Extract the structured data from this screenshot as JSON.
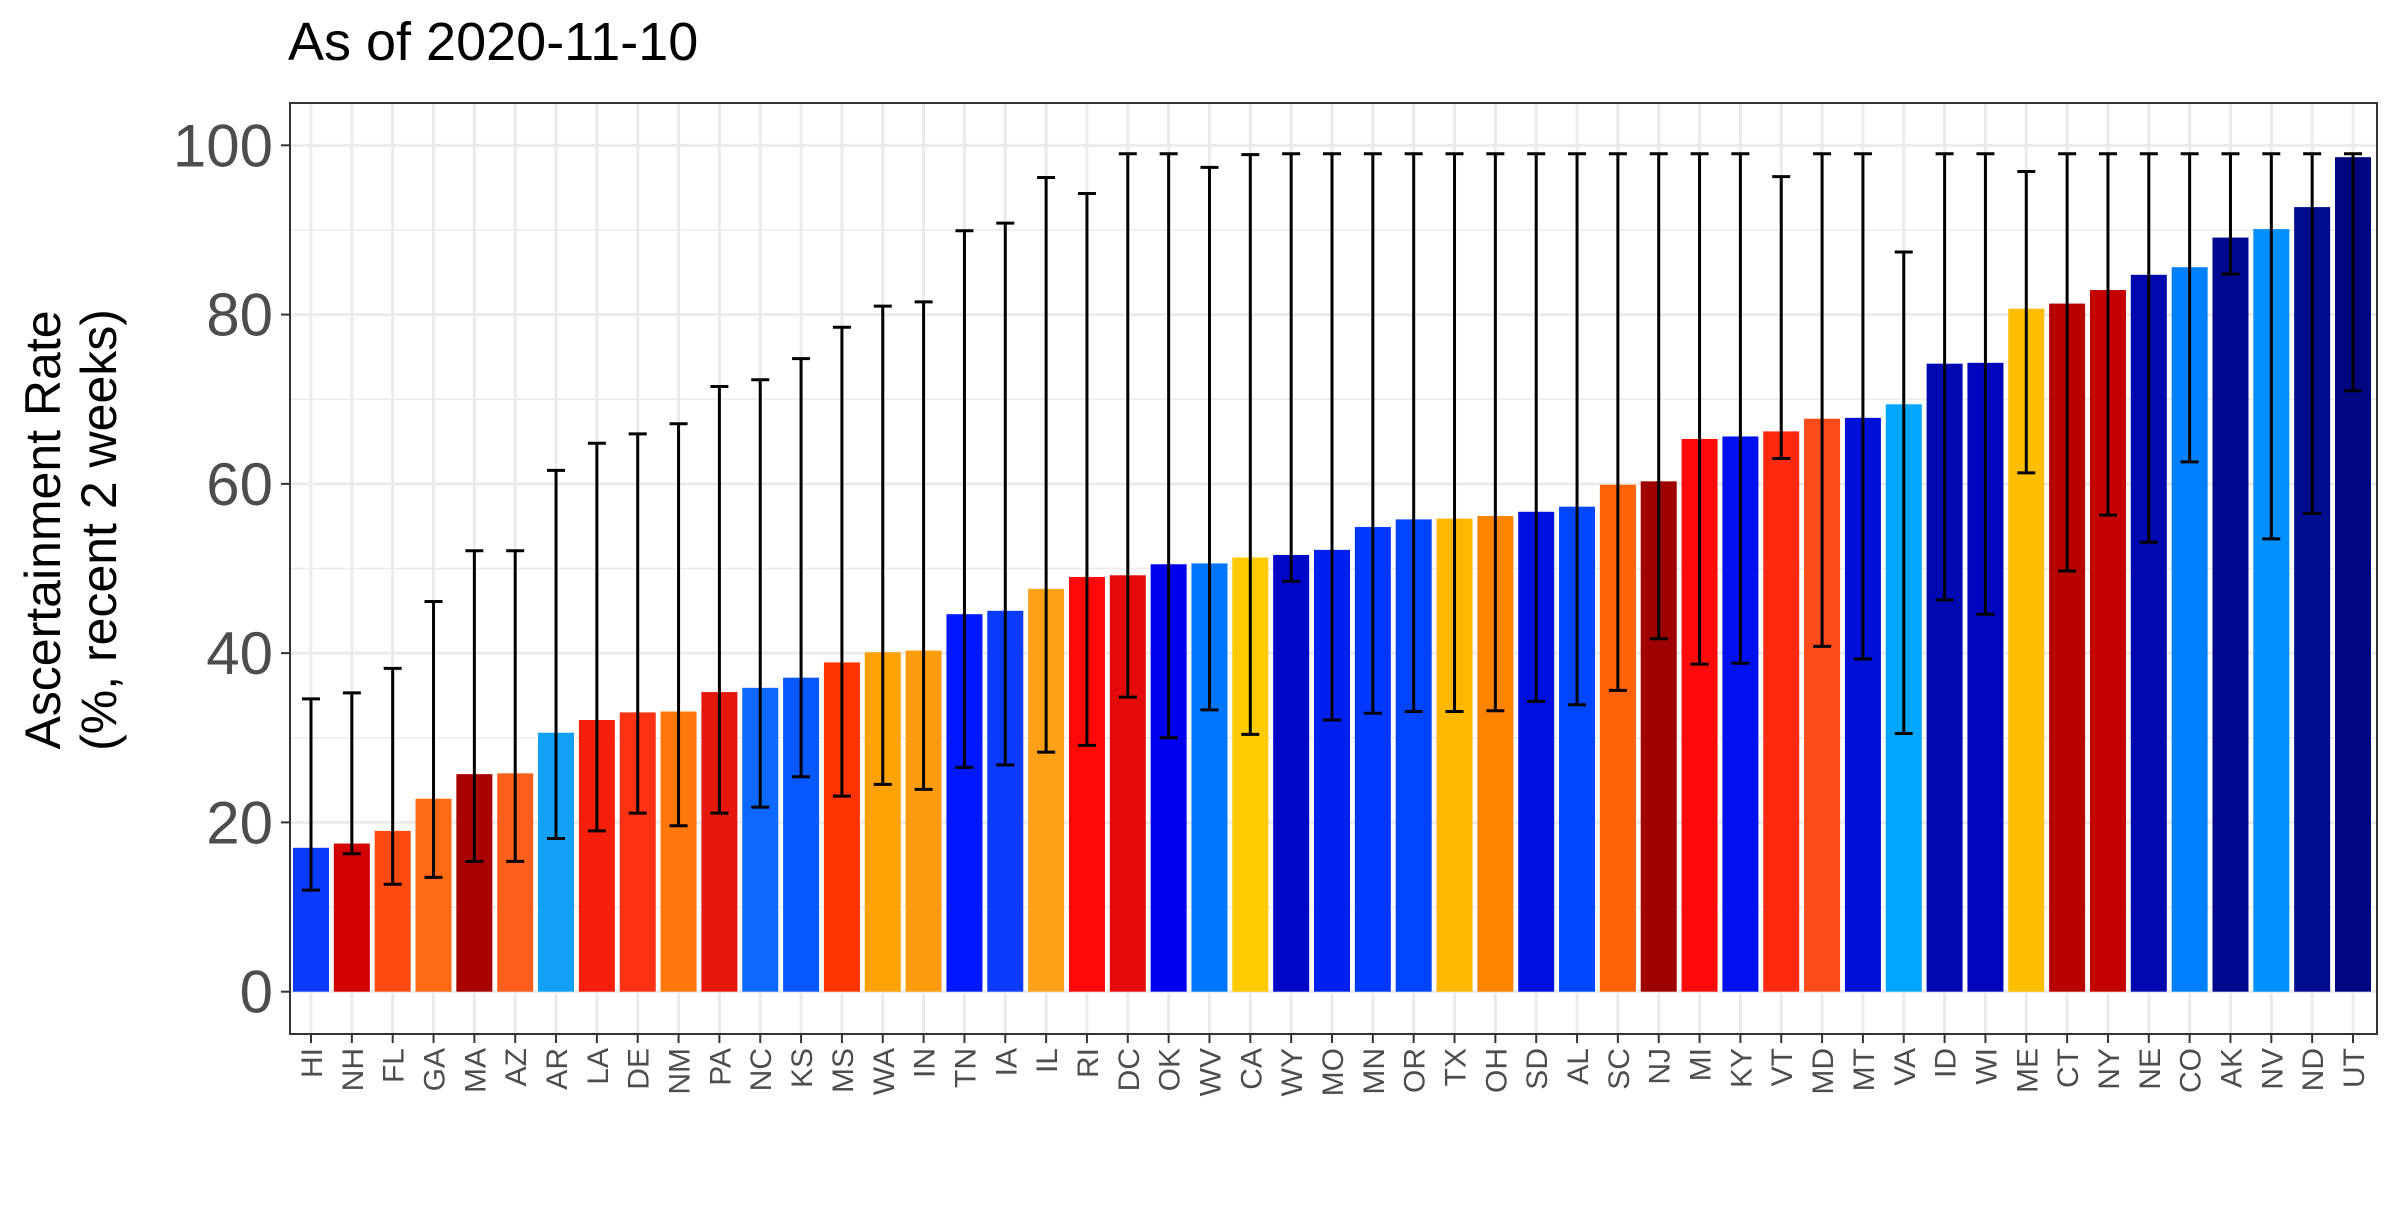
{
  "chart_data": {
    "type": "bar",
    "title": "As of 2020-11-10",
    "ylabel_line1": "Ascertainment Rate",
    "ylabel_line2": "(%, recent 2 weeks)",
    "xlabel": "",
    "ylim": [
      -5,
      105
    ],
    "yticks": [
      0,
      20,
      40,
      60,
      80,
      100
    ],
    "grid": true,
    "legend": "none",
    "categories": [
      "HI",
      "NH",
      "FL",
      "GA",
      "MA",
      "AZ",
      "AR",
      "LA",
      "DE",
      "NM",
      "PA",
      "NC",
      "KS",
      "MS",
      "WA",
      "IN",
      "TN",
      "IA",
      "IL",
      "RI",
      "DC",
      "OK",
      "WV",
      "CA",
      "WY",
      "MO",
      "MN",
      "OR",
      "TX",
      "OH",
      "SD",
      "AL",
      "SC",
      "NJ",
      "MI",
      "KY",
      "VT",
      "MD",
      "MT",
      "VA",
      "ID",
      "WI",
      "ME",
      "CT",
      "NY",
      "NE",
      "CO",
      "AK",
      "NV",
      "ND",
      "UT"
    ],
    "values": [
      17.0,
      17.5,
      19.0,
      22.8,
      25.7,
      25.8,
      30.6,
      32.1,
      33.0,
      33.1,
      35.4,
      35.9,
      37.1,
      38.9,
      40.1,
      40.3,
      44.6,
      45.0,
      47.6,
      49.0,
      49.2,
      50.5,
      50.6,
      51.3,
      51.6,
      52.2,
      54.9,
      55.8,
      55.9,
      56.2,
      56.7,
      57.3,
      59.9,
      60.3,
      65.3,
      65.6,
      66.2,
      67.7,
      67.8,
      69.4,
      74.2,
      74.3,
      80.7,
      81.3,
      82.9,
      84.7,
      85.6,
      89.1,
      90.1,
      92.7,
      98.6
    ],
    "ci_lower": [
      12.0,
      16.3,
      12.7,
      13.5,
      15.4,
      15.4,
      18.1,
      19.0,
      21.1,
      19.6,
      21.1,
      21.8,
      25.4,
      23.1,
      24.5,
      23.9,
      26.5,
      26.8,
      28.3,
      29.1,
      34.8,
      30.0,
      33.3,
      30.4,
      48.5,
      32.1,
      32.9,
      33.1,
      33.1,
      33.2,
      34.3,
      33.9,
      35.6,
      41.7,
      38.7,
      38.8,
      63.0,
      40.8,
      39.3,
      30.5,
      46.3,
      44.6,
      61.3,
      49.7,
      56.3,
      53.1,
      62.6,
      84.8,
      53.5,
      56.5,
      71.0
    ],
    "ci_upper": [
      34.6,
      35.3,
      38.2,
      46.1,
      52.1,
      52.1,
      61.6,
      64.8,
      65.9,
      67.1,
      71.5,
      72.3,
      74.8,
      78.5,
      81.0,
      81.5,
      89.9,
      90.8,
      96.2,
      94.3,
      99.0,
      99.0,
      97.4,
      98.9,
      99.0,
      99.0,
      99.0,
      99.0,
      99.0,
      99.0,
      99.0,
      99.0,
      99.0,
      99.0,
      99.0,
      99.0,
      96.3,
      99.0,
      99.0,
      87.4,
      99.0,
      99.0,
      96.9,
      99.0,
      99.0,
      99.0,
      99.0,
      99.0,
      99.0,
      99.0,
      99.0
    ],
    "colors": [
      "#0A3BFF",
      "#D20000",
      "#FF4A12",
      "#FF6A14",
      "#A80000",
      "#FF5E1C",
      "#11A0F5",
      "#F71E0C",
      "#FF3214",
      "#FF7809",
      "#E6170C",
      "#0C68FF",
      "#0858FF",
      "#FF3300",
      "#FFA206",
      "#FF9C0E",
      "#0018FF",
      "#0A3BFF",
      "#FFA21A",
      "#FF0808",
      "#E40A0A",
      "#0000EE",
      "#0076FF",
      "#FFCA00",
      "#0006C8",
      "#0020F0",
      "#0038FF",
      "#0044FF",
      "#FFB800",
      "#FF8400",
      "#0010E0",
      "#0046FF",
      "#FF6204",
      "#9E0000",
      "#FF0A0A",
      "#0010EE",
      "#FF2A10",
      "#FF4A1A",
      "#0010D6",
      "#03A6FF",
      "#0008B2",
      "#0004BA",
      "#FFBE00",
      "#B80000",
      "#C40000",
      "#0008AE",
      "#0080FF",
      "#000890",
      "#0090FF",
      "#000C90",
      "#000580"
    ]
  }
}
